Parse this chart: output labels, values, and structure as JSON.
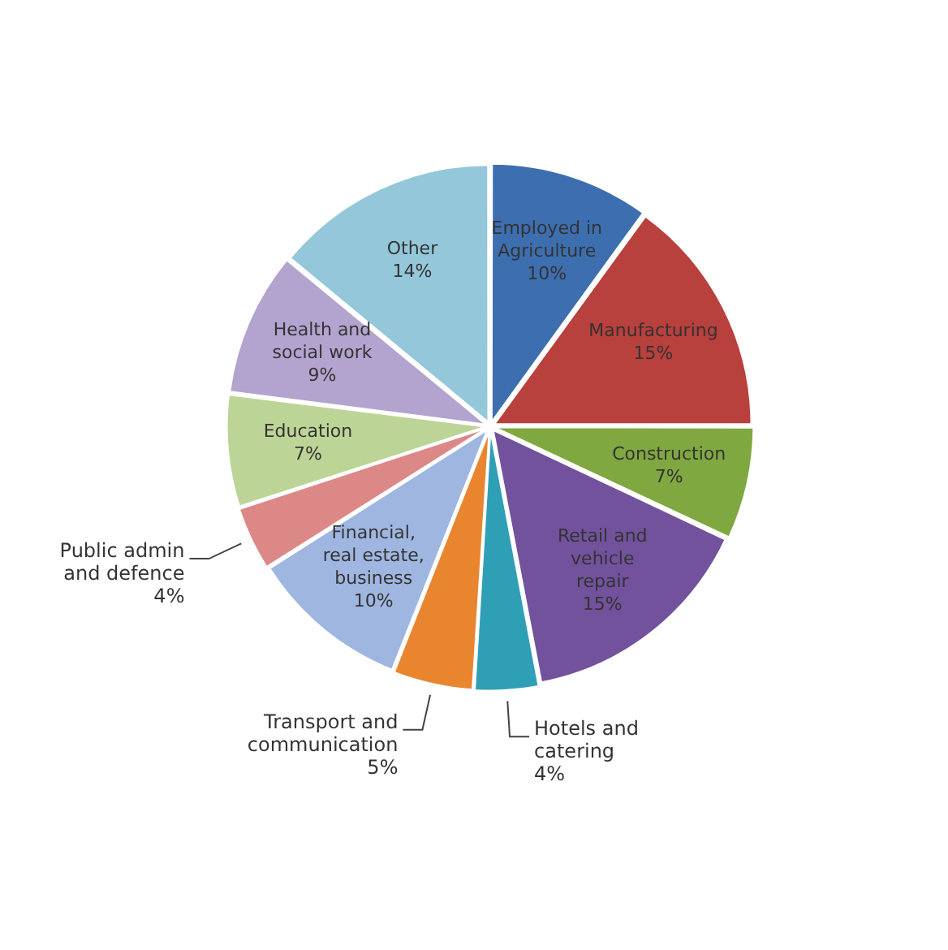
{
  "chart_data": {
    "type": "pie",
    "categories": [
      "Employed in Agriculture",
      "Manufacturing",
      "Construction",
      "Retail and vehicle repair",
      "Hotels and catering",
      "Transport and communication",
      "Financial, real estate, business",
      "Public admin and defence",
      "Education",
      "Health and social work",
      "Other"
    ],
    "values": [
      10,
      15,
      7,
      15,
      4,
      5,
      10,
      4,
      7,
      9,
      14
    ],
    "value_labels": [
      "10%",
      "15%",
      "7%",
      "15%",
      "4%",
      "5%",
      "10%",
      "4%",
      "7%",
      "9%",
      "14%"
    ],
    "colors": [
      "#3d6fb0",
      "#b8403d",
      "#80a840",
      "#72529c",
      "#2f9fb6",
      "#ea852f",
      "#9fb6e0",
      "#dc8887",
      "#bdd497",
      "#b2a4cf",
      "#94c7da"
    ],
    "legend": false
  }
}
